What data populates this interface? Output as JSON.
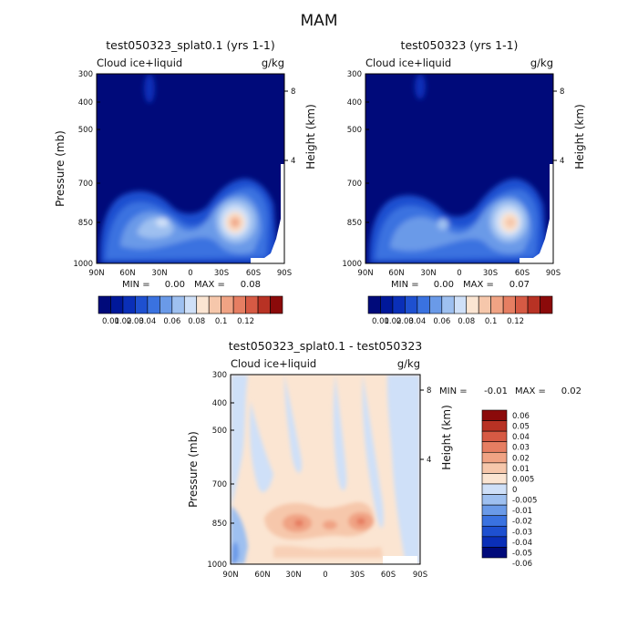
{
  "figure_title": "MAM",
  "colors": {
    "positive_scale": [
      "#000a7a",
      "#00189a",
      "#0a2fb8",
      "#1e50d0",
      "#3a72e0",
      "#6a9ae8",
      "#9ec0f0",
      "#cfe0f8",
      "#fbe5d2",
      "#f6c7ab",
      "#f0a384",
      "#e67e62",
      "#d65a44",
      "#b83224",
      "#8b0a0a"
    ],
    "diff_scale": [
      "#000a7a",
      "#0a2fb8",
      "#1e50d0",
      "#3a72e0",
      "#6a9ae8",
      "#9ec0f0",
      "#cfe0f8",
      "#fbe5d2",
      "#f6c7ab",
      "#f0a384",
      "#e67e62",
      "#d65a44",
      "#b83224",
      "#8b0a0a"
    ]
  },
  "chart_data": [
    {
      "type": "heatmap",
      "title": "test050323_splat0.1 (yrs 1-1)",
      "left_label": "Cloud ice+liquid",
      "right_label": "g/kg",
      "ylabel": "Pressure (mb)",
      "y2label": "Height (km)",
      "x_ticks": [
        "90N",
        "60N",
        "30N",
        "0",
        "30S",
        "60S",
        "90S"
      ],
      "y_ticks": [
        "300",
        "400",
        "500",
        "700",
        "850",
        "1000"
      ],
      "y2_ticks": [
        "8",
        "4"
      ],
      "ylim": [
        1000,
        300
      ],
      "xlim": [
        90,
        -90
      ],
      "min_label": "MIN =",
      "min_value": "0.00",
      "max_label": "MAX =",
      "max_value": "0.08",
      "colorbar_labels": [
        "0.01",
        "0.02",
        "0.03",
        "0.04",
        "0.06",
        "0.08",
        "0.1",
        "0.12"
      ],
      "features": [
        {
          "lat": 35,
          "p": 855,
          "value": 0.045
        },
        {
          "lat": -45,
          "p": 845,
          "value": 0.08
        }
      ]
    },
    {
      "type": "heatmap",
      "title": "test050323 (yrs 1-1)",
      "left_label": "Cloud ice+liquid",
      "right_label": "g/kg",
      "ylabel": "",
      "y2label": "Height (km)",
      "x_ticks": [
        "90N",
        "60N",
        "30N",
        "0",
        "30S",
        "60S",
        "90S"
      ],
      "y_ticks": [
        "300",
        "400",
        "500",
        "700",
        "850",
        "1000"
      ],
      "y2_ticks": [
        "8",
        "4"
      ],
      "ylim": [
        1000,
        300
      ],
      "xlim": [
        90,
        -90
      ],
      "min_label": "MIN =",
      "min_value": "0.00",
      "max_label": "MAX =",
      "max_value": "0.07",
      "colorbar_labels": [
        "0.01",
        "0.02",
        "0.03",
        "0.04",
        "0.06",
        "0.08",
        "0.1",
        "0.12"
      ],
      "features": [
        {
          "lat": 35,
          "p": 860,
          "value": 0.035
        },
        {
          "lat": -45,
          "p": 845,
          "value": 0.07
        }
      ]
    },
    {
      "type": "heatmap",
      "title": "test050323_splat0.1 - test050323",
      "left_label": "Cloud ice+liquid",
      "right_label": "g/kg",
      "ylabel": "Pressure (mb)",
      "y2label": "Height (km)",
      "x_ticks": [
        "90N",
        "60N",
        "30N",
        "0",
        "30S",
        "60S",
        "90S"
      ],
      "y_ticks": [
        "300",
        "400",
        "500",
        "700",
        "850",
        "1000"
      ],
      "y2_ticks": [
        "8",
        "4"
      ],
      "ylim": [
        1000,
        300
      ],
      "xlim": [
        90,
        -90
      ],
      "min_label": "MIN =",
      "min_value": "-0.01",
      "max_label": "MAX =",
      "max_value": "0.02",
      "colorbar_labels": [
        "0.06",
        "0.05",
        "0.04",
        "0.03",
        "0.02",
        "0.01",
        "0.005",
        "0",
        "-0.005",
        "-0.01",
        "-0.02",
        "-0.03",
        "-0.04",
        "-0.05",
        "-0.06"
      ],
      "features": [
        {
          "lat": 30,
          "p": 855,
          "value": 0.02
        },
        {
          "lat": -30,
          "p": 855,
          "value": 0.02
        }
      ]
    }
  ]
}
